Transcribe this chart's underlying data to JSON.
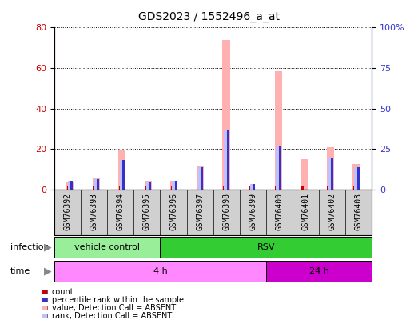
{
  "title": "GDS2023 / 1552496_a_at",
  "samples": [
    "GSM76392",
    "GSM76393",
    "GSM76394",
    "GSM76395",
    "GSM76396",
    "GSM76397",
    "GSM76398",
    "GSM76399",
    "GSM76400",
    "GSM76401",
    "GSM76402",
    "GSM76403"
  ],
  "value_absent": [
    4.0,
    5.5,
    19.5,
    4.5,
    4.5,
    11.5,
    74.0,
    0.0,
    58.5,
    15.0,
    21.0,
    12.5
  ],
  "rank_absent": [
    5.5,
    6.5,
    18.0,
    5.0,
    5.5,
    14.0,
    37.0,
    3.5,
    27.0,
    0.0,
    19.0,
    14.0
  ],
  "count_values": [
    2.0,
    2.0,
    2.0,
    1.5,
    2.0,
    0.0,
    2.0,
    1.5,
    2.0,
    2.0,
    2.0,
    1.5
  ],
  "rank_values": [
    5.5,
    6.5,
    18.0,
    5.0,
    5.5,
    14.0,
    37.0,
    3.5,
    27.0,
    0.0,
    19.0,
    14.0
  ],
  "ylim_left": [
    0,
    80
  ],
  "ylim_right": [
    0,
    100
  ],
  "yticks_left": [
    0,
    20,
    40,
    60,
    80
  ],
  "yticks_right": [
    0,
    25,
    50,
    75,
    100
  ],
  "ytick_labels_right": [
    "0",
    "25",
    "50",
    "75",
    "100%"
  ],
  "color_count": "#cc0000",
  "color_rank": "#3333cc",
  "color_value_absent": "#ffb0b0",
  "color_rank_absent": "#c0c0ff",
  "infection_groups": [
    {
      "label": "vehicle control",
      "start": 0,
      "end": 4,
      "color": "#99ee99"
    },
    {
      "label": "RSV",
      "start": 4,
      "end": 12,
      "color": "#33cc33"
    }
  ],
  "time_groups": [
    {
      "label": "4 h",
      "start": 0,
      "end": 8,
      "color": "#ff88ff"
    },
    {
      "label": "24 h",
      "start": 8,
      "end": 12,
      "color": "#cc00cc"
    }
  ],
  "legend_items": [
    {
      "label": "count",
      "color": "#cc0000"
    },
    {
      "label": "percentile rank within the sample",
      "color": "#3333cc"
    },
    {
      "label": "value, Detection Call = ABSENT",
      "color": "#ffb0b0"
    },
    {
      "label": "rank, Detection Call = ABSENT",
      "color": "#c0c0ff"
    }
  ],
  "background_color": "#ffffff",
  "plot_bg_color": "#ffffff",
  "tick_label_fontsize": 7,
  "title_fontsize": 10
}
